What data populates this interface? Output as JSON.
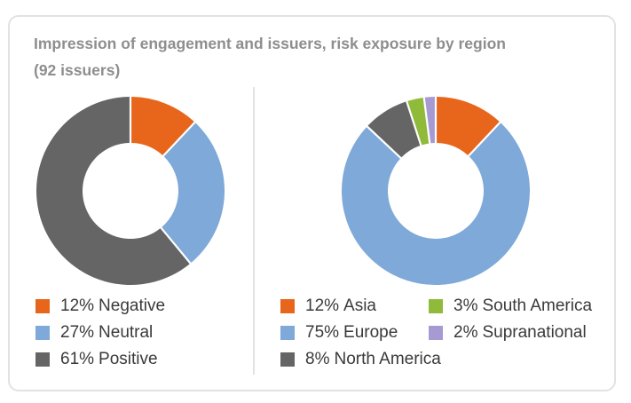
{
  "title": {
    "line1": "Impression of engagement and issuers, risk exposure by region",
    "line2": "(92 issuers)"
  },
  "chart_data": [
    {
      "type": "pie",
      "variant": "donut",
      "name": "Impression of engagement",
      "slices": [
        {
          "label": "Negative",
          "value": 12,
          "pct_text": "12%",
          "color": "#e8661b"
        },
        {
          "label": "Neutral",
          "value": 27,
          "pct_text": "27%",
          "color": "#7ea9d8"
        },
        {
          "label": "Positive",
          "value": 61,
          "pct_text": "61%",
          "color": "#656565"
        }
      ]
    },
    {
      "type": "pie",
      "variant": "donut",
      "name": "Risk exposure by region",
      "slices": [
        {
          "label": "Asia",
          "value": 12,
          "pct_text": "12%",
          "color": "#e8661b"
        },
        {
          "label": "Europe",
          "value": 75,
          "pct_text": "75%",
          "color": "#7ea9d8"
        },
        {
          "label": "North America",
          "value": 8,
          "pct_text": "8%",
          "color": "#656565"
        },
        {
          "label": "South America",
          "value": 3,
          "pct_text": "3%",
          "color": "#8fba3a"
        },
        {
          "label": "Supranational",
          "value": 2,
          "pct_text": "2%",
          "color": "#a79ad3"
        }
      ]
    }
  ]
}
